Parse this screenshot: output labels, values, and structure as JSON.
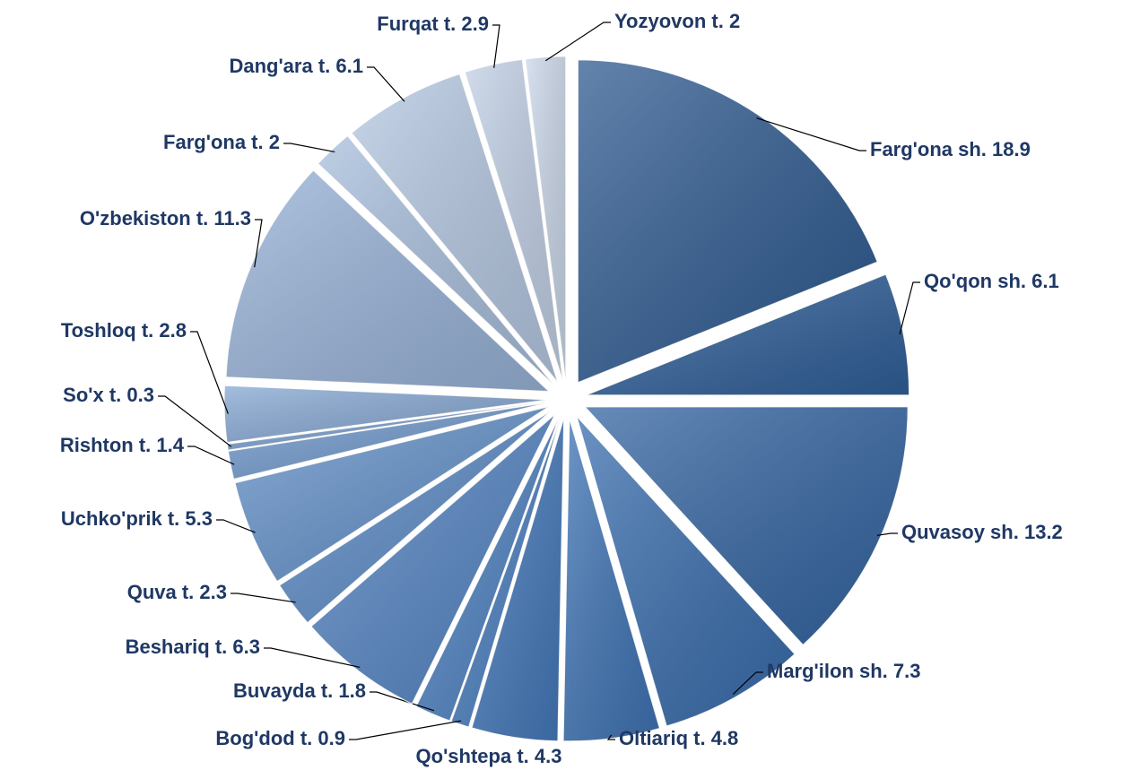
{
  "chart_data": {
    "type": "pie",
    "categories": [
      "Farg'ona sh.",
      "Qo'qon sh.",
      "Quvasoy sh.",
      "Marg'ilon sh.",
      "Oltiariq t.",
      "Qo'shtepa t.",
      "Bog'dod t.",
      "Buvayda t.",
      "Beshariq t.",
      "Quva t.",
      "Uchko'prik t.",
      "Rishton t.",
      "So'x t.",
      "Toshloq t.",
      "O'zbekiston t.",
      "Farg'ona t.",
      "Dang'ara t.",
      "Furqat t.",
      "Yozyovon t."
    ],
    "values": [
      18.9,
      6.1,
      13.2,
      7.3,
      4.8,
      4.3,
      0.9,
      1.8,
      6.3,
      2.3,
      5.3,
      1.4,
      0.3,
      2.8,
      11.3,
      2.0,
      6.1,
      2.9,
      2.0
    ],
    "colors": [
      "#2f5b91",
      "#30609a",
      "#3465a2",
      "#3a6eae",
      "#3f74b5",
      "#4479bb",
      "#4a7fc0",
      "#4e82c2",
      "#5585c4",
      "#5c8bc7",
      "#6592ca",
      "#7099cd",
      "#7a9fcf",
      "#86a8d3",
      "#98b3d8",
      "#a8bfdd",
      "#b5c8e2",
      "#c1d0e6",
      "#cbd8ea"
    ]
  }
}
